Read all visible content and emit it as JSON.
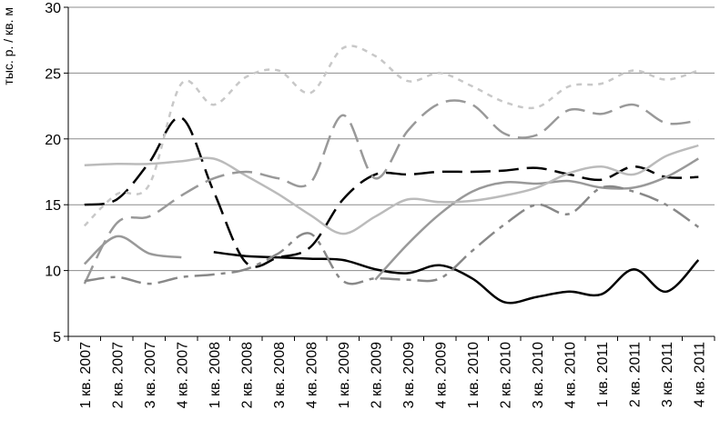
{
  "chart_data": {
    "type": "line",
    "title": "",
    "xlabel": "",
    "ylabel": "тыс. р. / кв. м",
    "ylim": [
      5,
      30
    ],
    "yticks": [
      "5",
      "10",
      "15",
      "20",
      "25",
      "30"
    ],
    "grid": true,
    "legend": "none",
    "categories": [
      "1 кв. 2007",
      "2 кв. 2007",
      "3 кв. 2007",
      "4 кв. 2007",
      "1 кв. 2008",
      "2 кв. 2008",
      "3 кв. 2008",
      "4 кв. 2008",
      "1 кв. 2009",
      "2 кв. 2009",
      "3 кв. 2009",
      "4 кв. 2009",
      "1 кв. 2010",
      "2 кв. 2010",
      "3 кв. 2010",
      "4 кв. 2010",
      "1 кв. 2011",
      "2 кв. 2011",
      "3 кв. 2011",
      "4 кв. 2011"
    ],
    "series": [
      {
        "color": "#000000",
        "dash": "solid",
        "width": 2.5,
        "values": [
          null,
          null,
          null,
          null,
          11.4,
          11.1,
          11.0,
          10.9,
          10.8,
          10.1,
          9.8,
          10.4,
          9.4,
          7.6,
          8.0,
          8.4,
          8.2,
          10.1,
          8.4,
          10.8
        ]
      },
      {
        "color": "#000000",
        "dash": "longdash",
        "width": 2.5,
        "values": [
          15.0,
          15.4,
          18.2,
          21.6,
          16.0,
          10.6,
          11.0,
          11.8,
          15.4,
          17.3,
          17.3,
          17.5,
          17.5,
          17.6,
          17.8,
          17.3,
          16.9,
          17.9,
          17.1,
          17.1
        ]
      },
      {
        "color": "#999999",
        "dash": "solid",
        "width": 2.5,
        "values": [
          10.5,
          12.6,
          11.3,
          11.0,
          null,
          null,
          null,
          null,
          null,
          9.3,
          12.0,
          14.3,
          16.0,
          16.7,
          16.6,
          16.8,
          16.3,
          16.3,
          17.1,
          18.5
        ]
      },
      {
        "color": "#bbbbbb",
        "dash": "solid",
        "width": 2.5,
        "values": [
          18.0,
          18.1,
          18.1,
          18.3,
          18.5,
          17.2,
          15.8,
          14.2,
          12.8,
          14.1,
          15.4,
          15.2,
          15.3,
          15.7,
          16.3,
          17.4,
          17.9,
          17.3,
          18.7,
          19.5
        ]
      },
      {
        "color": "#999999",
        "dash": "longdash",
        "width": 2.5,
        "values": [
          9.0,
          13.6,
          14.1,
          15.7,
          17.0,
          17.5,
          17.0,
          16.7,
          21.8,
          17.0,
          20.6,
          22.7,
          22.6,
          20.4,
          20.3,
          22.2,
          21.9,
          22.6,
          21.2,
          21.4
        ]
      },
      {
        "color": "#888888",
        "dash": "dashdot",
        "width": 2.5,
        "values": [
          9.2,
          9.5,
          9.0,
          9.5,
          9.7,
          10.1,
          11.3,
          12.8,
          9.2,
          9.4,
          9.3,
          9.4,
          11.5,
          13.5,
          15.0,
          14.3,
          16.3,
          16.0,
          15.0,
          13.3
        ]
      },
      {
        "color": "#c8c8c8",
        "dash": "dotted",
        "width": 2.5,
        "values": [
          13.4,
          15.8,
          16.5,
          24.2,
          22.6,
          24.7,
          25.2,
          23.5,
          26.9,
          26.3,
          24.4,
          25.0,
          24.0,
          22.8,
          22.4,
          24.0,
          24.2,
          25.2,
          24.5,
          25.2
        ]
      }
    ]
  }
}
